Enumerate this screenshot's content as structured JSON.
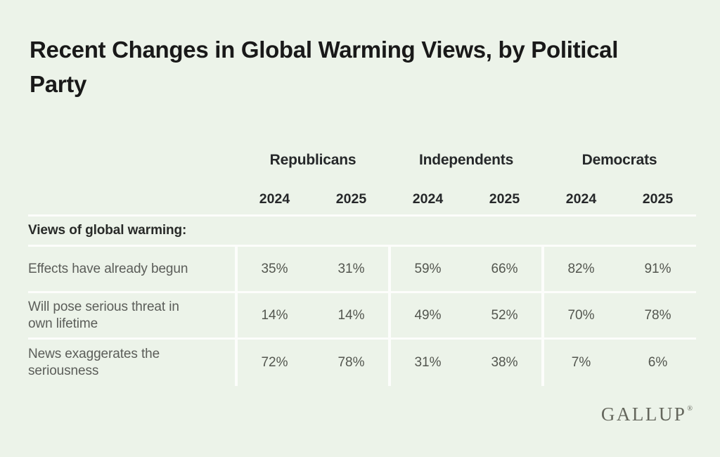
{
  "title": "Recent Changes in Global Warming Views, by Political Party",
  "colors": {
    "background": "#ecf3e9",
    "divider": "#fcfdfb",
    "title_text": "#191919",
    "header_text": "#26282a",
    "label_text": "#5b5d59",
    "value_text": "#53564f",
    "brand_text": "#64665c"
  },
  "table": {
    "group_headers": [
      "Republicans",
      "Independents",
      "Democrats"
    ],
    "year_headers": [
      "2024",
      "2025",
      "2024",
      "2025",
      "2024",
      "2025"
    ],
    "section_label": "Views of global warming:",
    "rows": [
      {
        "label": "Effects have already begun",
        "values": [
          "35%",
          "31%",
          "59%",
          "66%",
          "82%",
          "91%"
        ]
      },
      {
        "label": "Will pose serious threat in own lifetime",
        "values": [
          "14%",
          "14%",
          "49%",
          "52%",
          "70%",
          "78%"
        ]
      },
      {
        "label": "News exaggerates the seriousness",
        "values": [
          "72%",
          "78%",
          "31%",
          "38%",
          "7%",
          "6%"
        ]
      }
    ]
  },
  "footer": {
    "brand": "GALLUP",
    "registered_mark": "®"
  },
  "chart_data": {
    "type": "table",
    "title": "Recent Changes in Global Warming Views, by Political Party",
    "section_label": "Views of global warming:",
    "categories": [
      "Effects have already begun",
      "Will pose serious threat in own lifetime",
      "News exaggerates the seriousness"
    ],
    "series": [
      {
        "name": "Republicans 2024",
        "values": [
          35,
          14,
          72
        ]
      },
      {
        "name": "Republicans 2025",
        "values": [
          31,
          14,
          78
        ]
      },
      {
        "name": "Independents 2024",
        "values": [
          59,
          49,
          31
        ]
      },
      {
        "name": "Independents 2025",
        "values": [
          66,
          52,
          38
        ]
      },
      {
        "name": "Democrats 2024",
        "values": [
          82,
          70,
          7
        ]
      },
      {
        "name": "Democrats 2025",
        "values": [
          91,
          78,
          6
        ]
      }
    ],
    "unit": "%",
    "legend_position": "column-groups",
    "grid": "white-dividers",
    "source": "GALLUP"
  }
}
